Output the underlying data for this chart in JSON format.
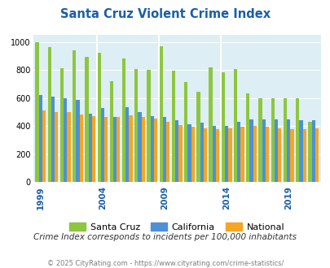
{
  "title": "Santa Cruz Violent Crime Index",
  "subtitle": "Crime Index corresponds to incidents per 100,000 inhabitants",
  "footer": "© 2025 CityRating.com - https://www.cityrating.com/crime-statistics/",
  "years": [
    1999,
    2000,
    2001,
    2002,
    2003,
    2004,
    2005,
    2006,
    2007,
    2008,
    2009,
    2010,
    2011,
    2012,
    2013,
    2014,
    2015,
    2016,
    2017,
    2018,
    2019,
    2020,
    2021
  ],
  "santa_cruz": [
    1000,
    960,
    810,
    940,
    895,
    920,
    720,
    882,
    805,
    803,
    968,
    797,
    714,
    647,
    820,
    785,
    808,
    630,
    597,
    601,
    597,
    600,
    430
  ],
  "california": [
    620,
    610,
    600,
    585,
    490,
    530,
    465,
    535,
    500,
    470,
    465,
    440,
    415,
    425,
    400,
    400,
    430,
    445,
    450,
    445,
    445,
    443,
    440
  ],
  "national": [
    510,
    500,
    500,
    480,
    470,
    463,
    465,
    475,
    465,
    455,
    432,
    405,
    395,
    386,
    380,
    382,
    395,
    400,
    395,
    385,
    380,
    380,
    387
  ],
  "santa_cruz_color": "#8dc63f",
  "california_color": "#4d90d5",
  "national_color": "#f5a623",
  "bg_plot_color": "#ddeef5",
  "title_color": "#1a5fa8",
  "subtitle_color": "#333333",
  "footer_color": "#7f7f7f",
  "ylim": [
    0,
    1050
  ],
  "yticks": [
    0,
    200,
    400,
    600,
    800,
    1000
  ],
  "x_label_years": [
    1999,
    2004,
    2009,
    2014,
    2019
  ],
  "bar_width": 0.28
}
